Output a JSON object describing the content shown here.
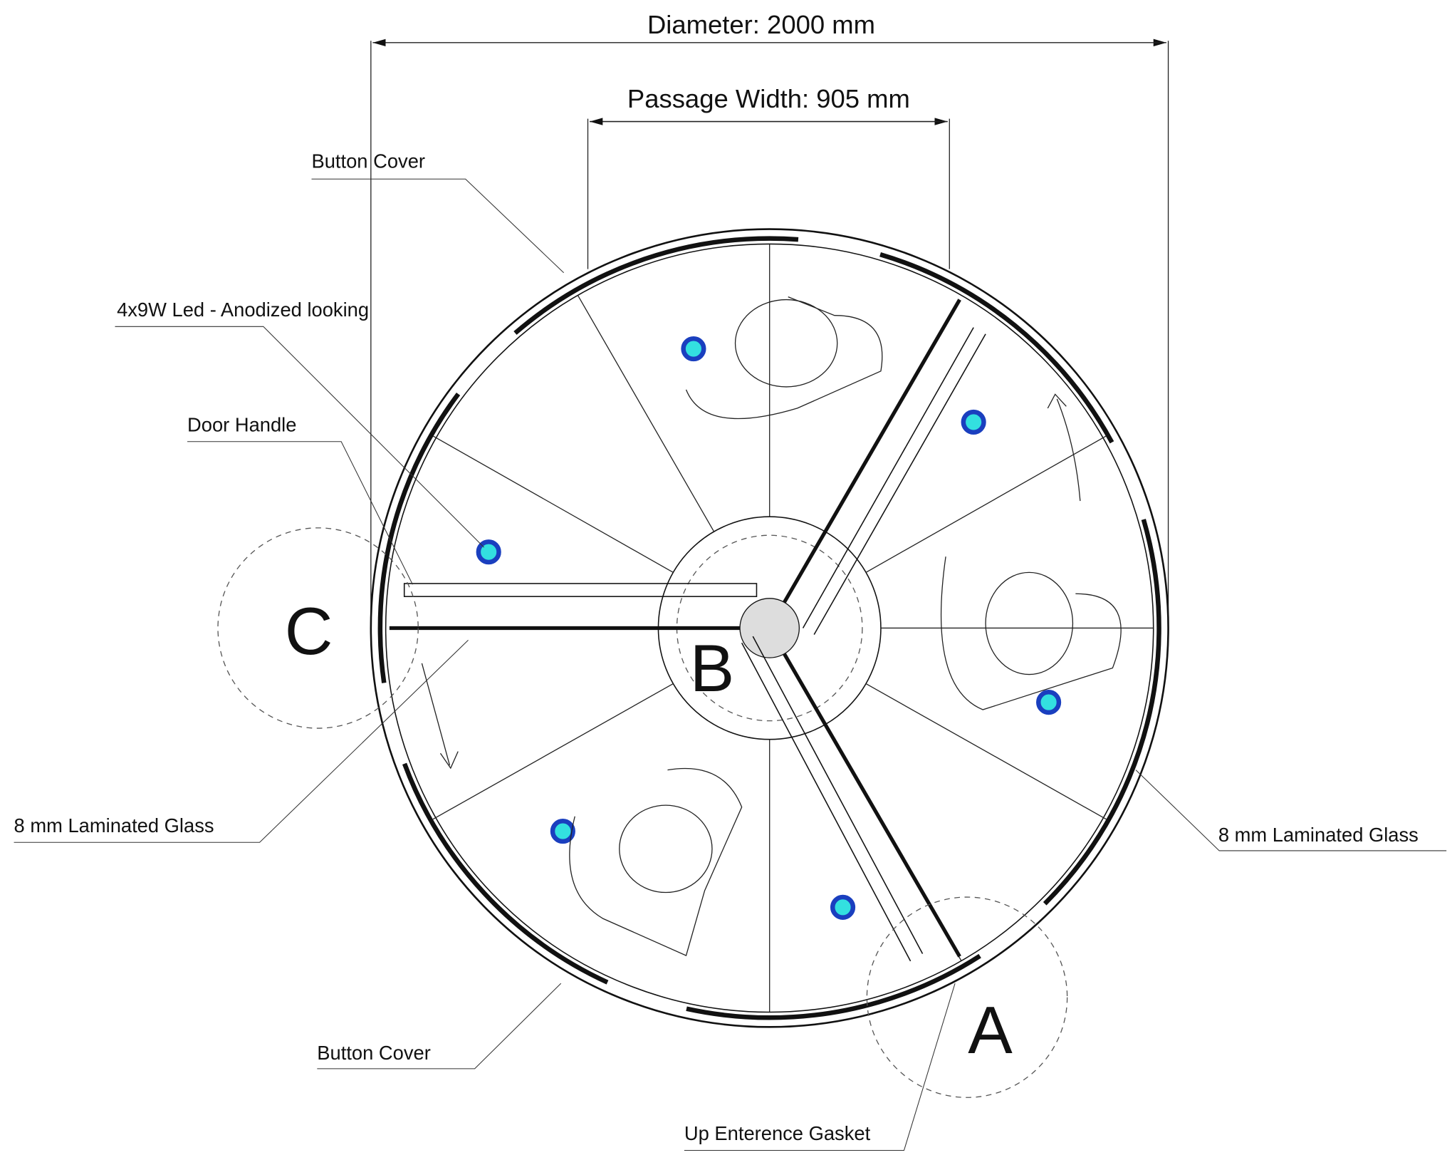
{
  "dimensions": {
    "diameter": "Diameter: 2000 mm",
    "passage_width": "Passage Width: 905 mm"
  },
  "callouts": {
    "button_cover_top": "Button Cover",
    "led": "4x9W Led - Anodized looking",
    "door_handle": "Door Handle",
    "glass_left": "8 mm Laminated Glass",
    "glass_right": "8 mm Laminated Glass",
    "button_cover_bottom": "Button Cover",
    "gasket": "Up Enterence Gasket"
  },
  "zones": {
    "a": "A",
    "b": "B",
    "c": "C"
  }
}
